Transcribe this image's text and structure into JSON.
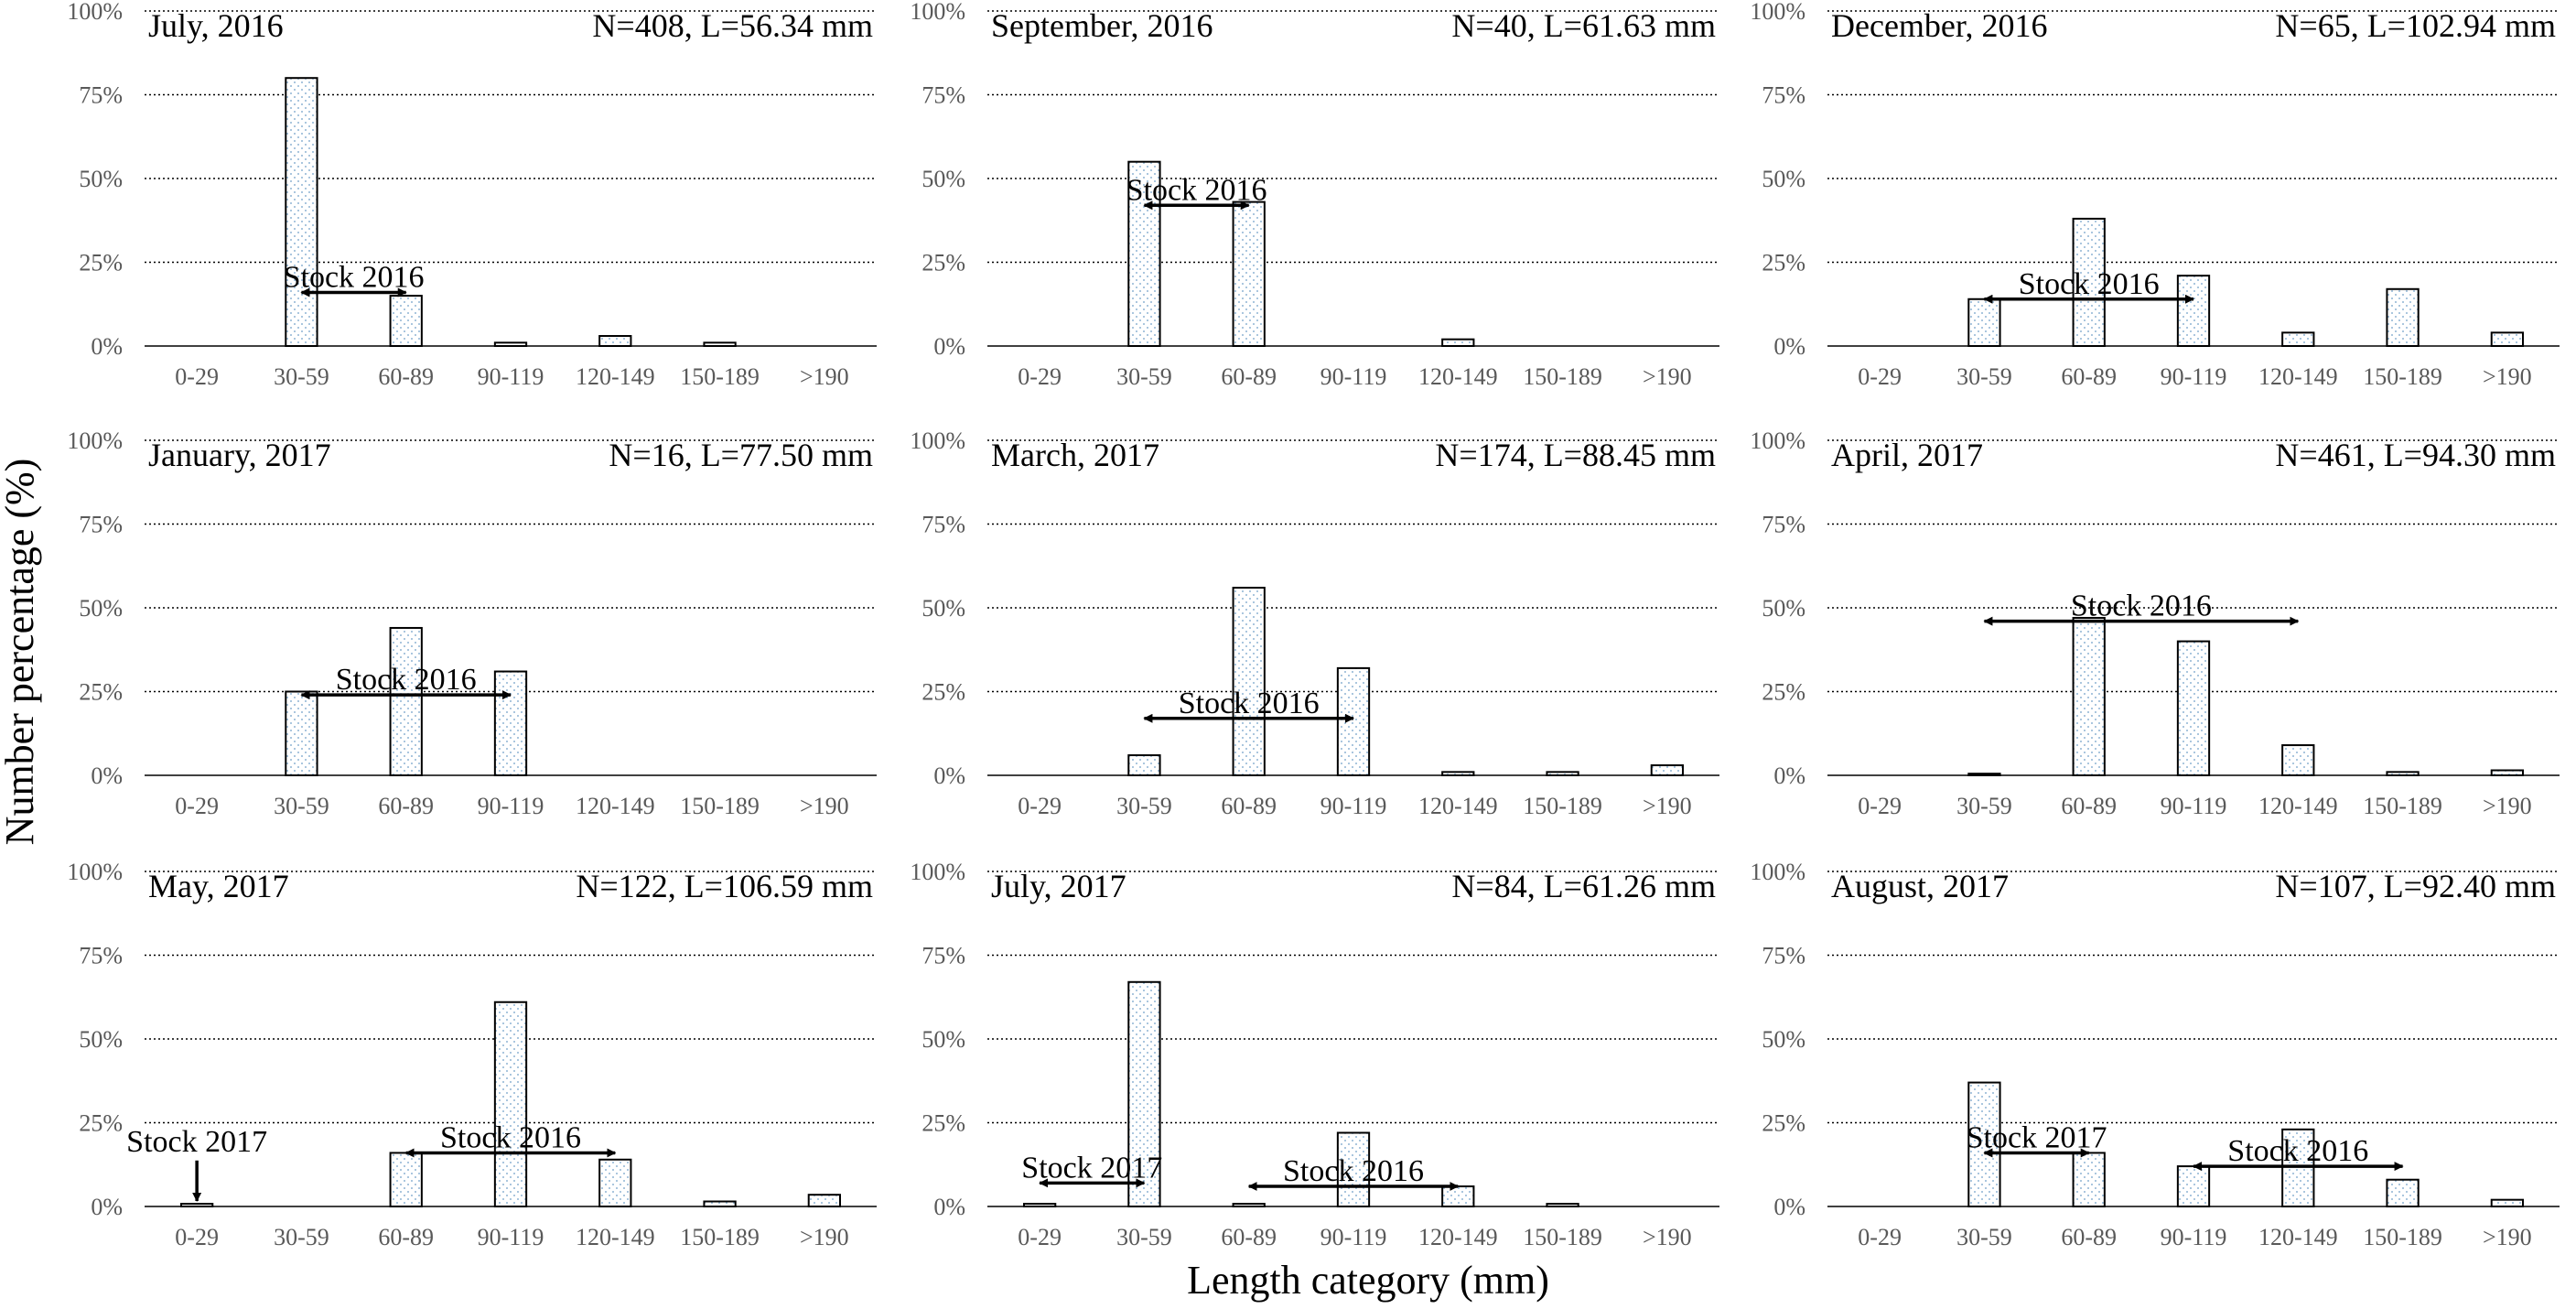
{
  "figure": {
    "ylabel": "Number percentage (%)",
    "xlabel": "Length category (mm)"
  },
  "chart_data": [
    {
      "type": "bar",
      "title": "July, 2016",
      "stats": "N=408, L=56.34 mm",
      "categories": [
        "0-29",
        "30-59",
        "60-89",
        "90-119",
        "120-149",
        "150-189",
        ">190"
      ],
      "values": [
        0,
        80,
        15,
        1,
        3,
        1,
        0
      ],
      "ylim": [
        0,
        100
      ],
      "yticks": [
        "0%",
        "25%",
        "50%",
        "75%",
        "100%"
      ],
      "grid": true,
      "annotations": [
        {
          "text": "Stock 2016",
          "type": "range",
          "from": 1,
          "to": 2,
          "y": 16
        }
      ]
    },
    {
      "type": "bar",
      "title": "September, 2016",
      "stats": "N=40, L=61.63 mm",
      "categories": [
        "0-29",
        "30-59",
        "60-89",
        "90-119",
        "120-149",
        "150-189",
        ">190"
      ],
      "values": [
        0,
        55,
        43,
        0,
        2,
        0,
        0
      ],
      "ylim": [
        0,
        100
      ],
      "yticks": [
        "0%",
        "25%",
        "50%",
        "75%",
        "100%"
      ],
      "grid": true,
      "annotations": [
        {
          "text": "Stock 2016",
          "type": "range",
          "from": 1,
          "to": 2,
          "y": 42
        }
      ]
    },
    {
      "type": "bar",
      "title": "December, 2016",
      "stats": "N=65, L=102.94 mm",
      "categories": [
        "0-29",
        "30-59",
        "60-89",
        "90-119",
        "120-149",
        "150-189",
        ">190"
      ],
      "values": [
        0,
        14,
        38,
        21,
        4,
        17,
        4
      ],
      "ylim": [
        0,
        100
      ],
      "yticks": [
        "0%",
        "25%",
        "50%",
        "75%",
        "100%"
      ],
      "grid": true,
      "annotations": [
        {
          "text": "Stock 2016",
          "type": "range",
          "from": 1,
          "to": 3,
          "y": 14
        }
      ]
    },
    {
      "type": "bar",
      "title": "January, 2017",
      "stats": "N=16, L=77.50 mm",
      "categories": [
        "0-29",
        "30-59",
        "60-89",
        "90-119",
        "120-149",
        "150-189",
        ">190"
      ],
      "values": [
        0,
        25,
        44,
        31,
        0,
        0,
        0
      ],
      "ylim": [
        0,
        100
      ],
      "yticks": [
        "0%",
        "25%",
        "50%",
        "75%",
        "100%"
      ],
      "grid": true,
      "annotations": [
        {
          "text": "Stock 2016",
          "type": "range",
          "from": 1,
          "to": 3,
          "y": 24
        }
      ]
    },
    {
      "type": "bar",
      "title": "March, 2017",
      "stats": "N=174, L=88.45 mm",
      "categories": [
        "0-29",
        "30-59",
        "60-89",
        "90-119",
        "120-149",
        "150-189",
        ">190"
      ],
      "values": [
        0,
        6,
        56,
        32,
        1,
        1,
        3
      ],
      "ylim": [
        0,
        100
      ],
      "yticks": [
        "0%",
        "25%",
        "50%",
        "75%",
        "100%"
      ],
      "grid": true,
      "annotations": [
        {
          "text": "Stock 2016",
          "type": "range",
          "from": 1,
          "to": 3,
          "y": 17
        }
      ]
    },
    {
      "type": "bar",
      "title": "April, 2017",
      "stats": "N=461, L=94.30 mm",
      "categories": [
        "0-29",
        "30-59",
        "60-89",
        "90-119",
        "120-149",
        "150-189",
        ">190"
      ],
      "values": [
        0,
        0.5,
        47,
        40,
        9,
        1,
        1.5
      ],
      "ylim": [
        0,
        100
      ],
      "yticks": [
        "0%",
        "25%",
        "50%",
        "75%",
        "100%"
      ],
      "grid": true,
      "annotations": [
        {
          "text": "Stock 2016",
          "type": "range",
          "from": 1,
          "to": 4,
          "y": 46
        }
      ]
    },
    {
      "type": "bar",
      "title": "May, 2017",
      "stats": "N=122, L=106.59 mm",
      "categories": [
        "0-29",
        "30-59",
        "60-89",
        "90-119",
        "120-149",
        "150-189",
        ">190"
      ],
      "values": [
        0.8,
        0,
        16,
        61,
        14,
        1.5,
        3.5
      ],
      "ylim": [
        0,
        100
      ],
      "yticks": [
        "0%",
        "25%",
        "50%",
        "75%",
        "100%"
      ],
      "grid": true,
      "annotations": [
        {
          "text": "Stock 2017",
          "type": "point",
          "at": 0,
          "y": 17
        },
        {
          "text": "Stock 2016",
          "type": "range",
          "from": 2,
          "to": 4,
          "y": 16
        }
      ]
    },
    {
      "type": "bar",
      "title": "July, 2017",
      "stats": "N=84, L=61.26 mm",
      "categories": [
        "0-29",
        "30-59",
        "60-89",
        "90-119",
        "120-149",
        "150-189",
        ">190"
      ],
      "values": [
        0.8,
        67,
        0.8,
        22,
        6,
        0.8,
        0
      ],
      "ylim": [
        0,
        100
      ],
      "yticks": [
        "0%",
        "25%",
        "50%",
        "75%",
        "100%"
      ],
      "grid": true,
      "annotations": [
        {
          "text": "Stock 2017",
          "type": "range",
          "from": 0,
          "to": 1,
          "y": 7
        },
        {
          "text": "Stock 2016",
          "type": "range",
          "from": 2,
          "to": 4,
          "y": 6
        }
      ]
    },
    {
      "type": "bar",
      "title": "August, 2017",
      "stats": "N=107, L=92.40 mm",
      "categories": [
        "0-29",
        "30-59",
        "60-89",
        "90-119",
        "120-149",
        "150-189",
        ">190"
      ],
      "values": [
        0,
        37,
        16,
        12,
        23,
        8,
        2
      ],
      "ylim": [
        0,
        100
      ],
      "yticks": [
        "0%",
        "25%",
        "50%",
        "75%",
        "100%"
      ],
      "grid": true,
      "annotations": [
        {
          "text": "Stock 2017",
          "type": "range",
          "from": 1,
          "to": 2,
          "y": 16
        },
        {
          "text": "Stock 2016",
          "type": "range",
          "from": 3,
          "to": 5,
          "y": 12
        }
      ]
    }
  ]
}
